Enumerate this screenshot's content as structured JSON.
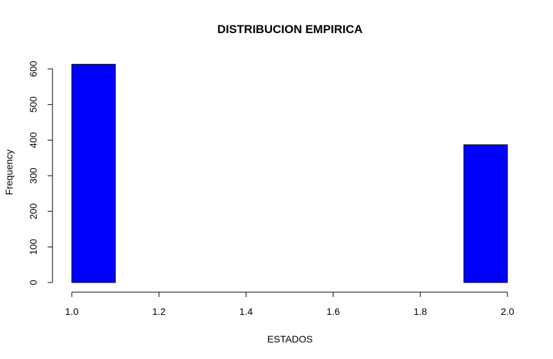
{
  "chart_data": {
    "type": "bar",
    "title": "DISTRIBUCION EMPIRICA",
    "xlabel": "ESTADOS",
    "ylabel": "Frequency",
    "bins": [
      [
        1.0,
        1.1
      ],
      [
        1.1,
        1.2
      ],
      [
        1.2,
        1.3
      ],
      [
        1.3,
        1.4
      ],
      [
        1.4,
        1.5
      ],
      [
        1.5,
        1.6
      ],
      [
        1.6,
        1.7
      ],
      [
        1.7,
        1.8
      ],
      [
        1.8,
        1.9
      ],
      [
        1.9,
        2.0
      ]
    ],
    "values": [
      613,
      0,
      0,
      0,
      0,
      0,
      0,
      0,
      0,
      387
    ],
    "xlim": [
      1.0,
      2.0
    ],
    "ylim": [
      0,
      600
    ],
    "xticks": [
      "1.0",
      "1.2",
      "1.4",
      "1.6",
      "1.8",
      "2.0"
    ],
    "yticks": [
      "0",
      "100",
      "200",
      "300",
      "400",
      "500",
      "600"
    ],
    "bar_color": "#0000ff",
    "grid": false
  }
}
